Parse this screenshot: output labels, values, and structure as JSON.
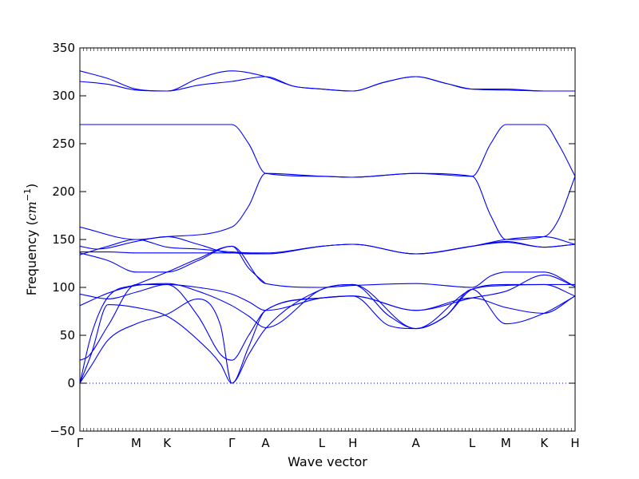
{
  "chart_data": {
    "type": "line",
    "title": "",
    "xlabel": "Wave vector",
    "ylabel_text": "Frequency (",
    "ylabel_unit": "cm",
    "ylabel_exp": "−1",
    "ylabel_close": ")",
    "ylim": [
      -50,
      350
    ],
    "yticks": [
      -50,
      0,
      50,
      100,
      150,
      200,
      250,
      300,
      350
    ],
    "grid": false,
    "line_color": "#0000ff",
    "zero_line": {
      "y": 0,
      "style": "dotted",
      "color": "#0000ff"
    },
    "xlim": [
      0,
      8.8
    ],
    "high_symmetry_points": [
      {
        "label": "Γ",
        "x": 0
      },
      {
        "label": "M",
        "x": 1.0
      },
      {
        "label": "K",
        "x": 1.55
      },
      {
        "label": "Γ",
        "x": 2.7
      },
      {
        "label": "A",
        "x": 3.3
      },
      {
        "label": "L",
        "x": 4.3
      },
      {
        "label": "H",
        "x": 4.85
      },
      {
        "label": "A",
        "x": 5.97
      },
      {
        "label": "L",
        "x": 6.97
      },
      {
        "label": "M",
        "x": 7.57
      },
      {
        "label": "K",
        "x": 8.25
      },
      {
        "label": "H",
        "x": 8.8
      }
    ],
    "series": [
      {
        "x": [
          0,
          0.5,
          1.0,
          1.55,
          2.1,
          2.7,
          3.3,
          3.8,
          4.3,
          4.85,
          5.4,
          5.97,
          6.5,
          6.97,
          7.57,
          8.25,
          8.8
        ],
        "values": [
          326,
          318,
          307,
          305,
          318,
          326,
          320,
          310,
          307,
          305,
          314,
          320,
          313,
          307,
          307,
          305,
          305
        ]
      },
      {
        "x": [
          0,
          0.5,
          1.0,
          1.55,
          2.1,
          2.7,
          3.3,
          3.8,
          4.3,
          4.85,
          5.4,
          5.97,
          6.5,
          6.97,
          7.57,
          8.25,
          8.8
        ],
        "values": [
          315,
          312,
          306,
          305,
          311,
          315,
          320,
          310,
          307,
          305,
          314,
          320,
          313,
          307,
          306,
          305,
          305
        ]
      },
      {
        "x": [
          0,
          1.0,
          1.55,
          2.7,
          3.0,
          3.3,
          4.3,
          4.85,
          5.97,
          6.97,
          7.3,
          7.57,
          8.25,
          8.5,
          8.8
        ],
        "values": [
          270,
          270,
          270,
          270,
          250,
          219,
          216,
          215,
          219,
          216,
          250,
          270,
          270,
          250,
          216
        ]
      },
      {
        "x": [
          0,
          1.0,
          1.55,
          2.7,
          3.0,
          3.3,
          4.3,
          4.85,
          5.97,
          6.97,
          7.3,
          7.57,
          8.25,
          8.5,
          8.8
        ],
        "values": [
          163,
          150,
          153,
          163,
          185,
          219,
          216,
          215,
          219,
          216,
          175,
          150,
          153,
          170,
          216
        ]
      },
      {
        "x": [
          0,
          0.5,
          1.0,
          1.55,
          2.1,
          2.7,
          3.0,
          3.3,
          4.3,
          4.85,
          5.97,
          6.97,
          7.57,
          8.25,
          8.8
        ],
        "values": [
          134,
          143,
          150,
          142,
          140,
          137,
          136,
          135,
          143,
          145,
          135,
          143,
          148,
          142,
          145
        ]
      },
      {
        "x": [
          0,
          0.5,
          1.0,
          1.55,
          2.1,
          2.7,
          3.0,
          3.3,
          4.3,
          4.85,
          5.97,
          6.97,
          7.57,
          8.25,
          8.8
        ],
        "values": [
          137,
          137,
          136,
          136,
          136,
          136,
          135,
          135,
          143,
          145,
          135,
          143,
          147,
          142,
          145
        ]
      },
      {
        "x": [
          0,
          0.3,
          1.0,
          1.55,
          2.1,
          2.7,
          3.3,
          4.3,
          4.85,
          5.97,
          6.97,
          7.57,
          8.25,
          8.8
        ],
        "values": [
          143,
          140,
          148,
          153,
          145,
          136,
          136,
          143,
          145,
          135,
          143,
          150,
          153,
          145
        ]
      },
      {
        "x": [
          0,
          0.5,
          1.0,
          1.55,
          2.1,
          2.7,
          3.3,
          4.3,
          4.85,
          5.97,
          6.97,
          7.3,
          7.57,
          8.25,
          8.8
        ],
        "values": [
          136,
          128,
          116,
          116,
          128,
          143,
          104,
          100,
          102,
          104,
          100,
          112,
          116,
          116,
          101
        ]
      },
      {
        "x": [
          0,
          0.5,
          1.0,
          1.55,
          2.1,
          2.7,
          3.0,
          3.3,
          4.3,
          4.85,
          5.97,
          6.97,
          7.57,
          8.25,
          8.8
        ],
        "values": [
          81,
          94,
          102,
          104,
          96,
          81,
          70,
          58,
          98,
          103,
          57,
          98,
          102,
          103,
          103
        ]
      },
      {
        "x": [
          0,
          0.5,
          1.0,
          1.55,
          2.1,
          2.7,
          3.0,
          3.3,
          4.3,
          4.85,
          5.97,
          6.97,
          7.57,
          8.25,
          8.8
        ],
        "values": [
          93,
          88,
          95,
          103,
          100,
          93,
          85,
          76,
          89,
          91,
          76,
          89,
          96,
          113,
          101
        ]
      },
      {
        "x": [
          0,
          0.15,
          0.5,
          1.0,
          1.55,
          2.1,
          2.5,
          2.7,
          3.0,
          3.3,
          4.3,
          4.85,
          5.5,
          5.97,
          6.5,
          6.97,
          7.57,
          8.25,
          8.8
        ],
        "values": [
          24,
          28,
          60,
          103,
          103,
          70,
          30,
          24,
          50,
          76,
          89,
          91,
          60,
          57,
          70,
          98,
          103,
          103,
          91
        ]
      },
      {
        "x": [
          0,
          0.2,
          0.5,
          1.0,
          1.55,
          2.1,
          2.5,
          2.7,
          3.0,
          3.3,
          4.3,
          4.85,
          5.97,
          6.97,
          7.57,
          8.25,
          8.8
        ],
        "values": [
          0,
          30,
          82,
          79,
          70,
          45,
          20,
          0,
          38,
          76,
          89,
          91,
          76,
          89,
          79,
          73,
          91
        ]
      },
      {
        "x": [
          0,
          0.2,
          0.5,
          1.0,
          1.55,
          2.1,
          2.5,
          2.7,
          3.0,
          3.3,
          4.3,
          4.85,
          5.5,
          5.97,
          6.5,
          6.97,
          7.57,
          8.25,
          8.8
        ],
        "values": [
          0,
          18,
          45,
          62,
          72,
          88,
          60,
          0,
          30,
          57,
          98,
          103,
          70,
          57,
          70,
          98,
          62,
          73,
          91
        ]
      },
      {
        "x": [
          0,
          0.2,
          0.5,
          1.0,
          1.55,
          2.1,
          2.7,
          3.0,
          3.3
        ],
        "values": [
          0,
          50,
          90,
          103,
          116,
          130,
          143,
          120,
          104
        ]
      }
    ]
  }
}
